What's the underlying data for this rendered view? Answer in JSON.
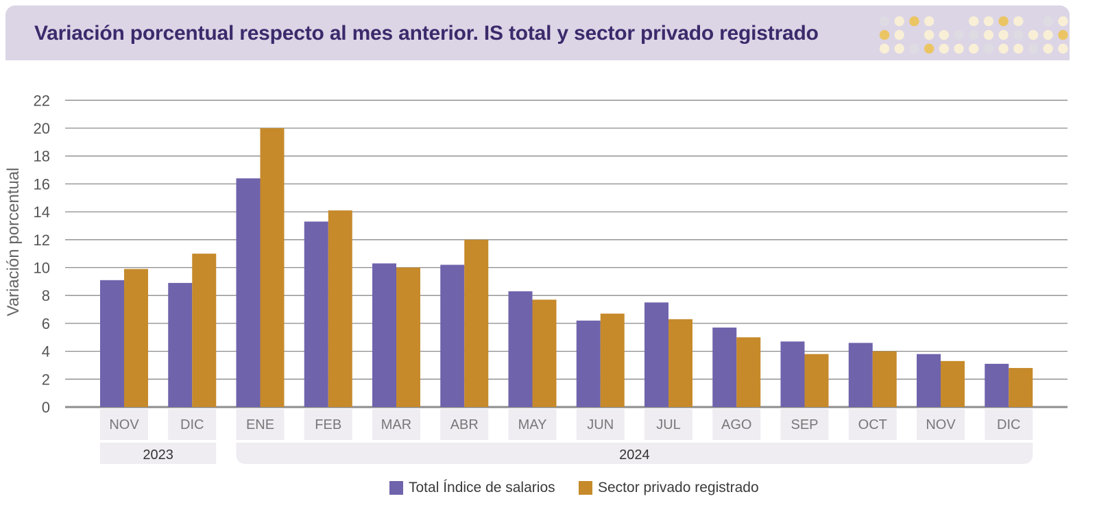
{
  "header": {
    "title": "Variación porcentual respecto al mes anterior. IS total y sector privado registrado"
  },
  "colors": {
    "banner": "#dcd5e6",
    "title": "#3b2a6b",
    "series_total": "#6f63ac",
    "series_privado": "#c68a2b",
    "label_bg": "#efecf2",
    "grid": "#8a8a8a"
  },
  "chart_data": {
    "type": "bar",
    "ylabel": "Variación porcentual",
    "ylim": [
      0,
      22
    ],
    "yticks": [
      0,
      2,
      4,
      6,
      8,
      10,
      12,
      14,
      16,
      18,
      20,
      22
    ],
    "grid": true,
    "legend_position": "bottom",
    "categories": [
      "NOV",
      "DIC",
      "ENE",
      "FEB",
      "MAR",
      "ABR",
      "MAY",
      "JUN",
      "JUL",
      "AGO",
      "SEP",
      "OCT",
      "NOV",
      "DIC"
    ],
    "year_groups": [
      {
        "label": "2023",
        "start": 0,
        "end": 1
      },
      {
        "label": "2024",
        "start": 2,
        "end": 13
      }
    ],
    "series": [
      {
        "name": "Total Índice de salarios",
        "values": [
          9.1,
          8.9,
          16.4,
          13.3,
          10.3,
          10.2,
          8.3,
          6.2,
          7.5,
          5.7,
          4.7,
          4.6,
          3.8,
          3.1
        ]
      },
      {
        "name": "Sector privado registrado",
        "values": [
          9.9,
          11.0,
          20.0,
          14.1,
          10.0,
          12.0,
          7.7,
          6.7,
          6.3,
          5.0,
          3.8,
          4.0,
          3.3,
          2.8
        ]
      }
    ]
  },
  "dot_pattern": [
    "g w y w . . w w y w . g w",
    "y w . w w g g w w g w w y",
    "w w g y w w w g w w g w w"
  ]
}
